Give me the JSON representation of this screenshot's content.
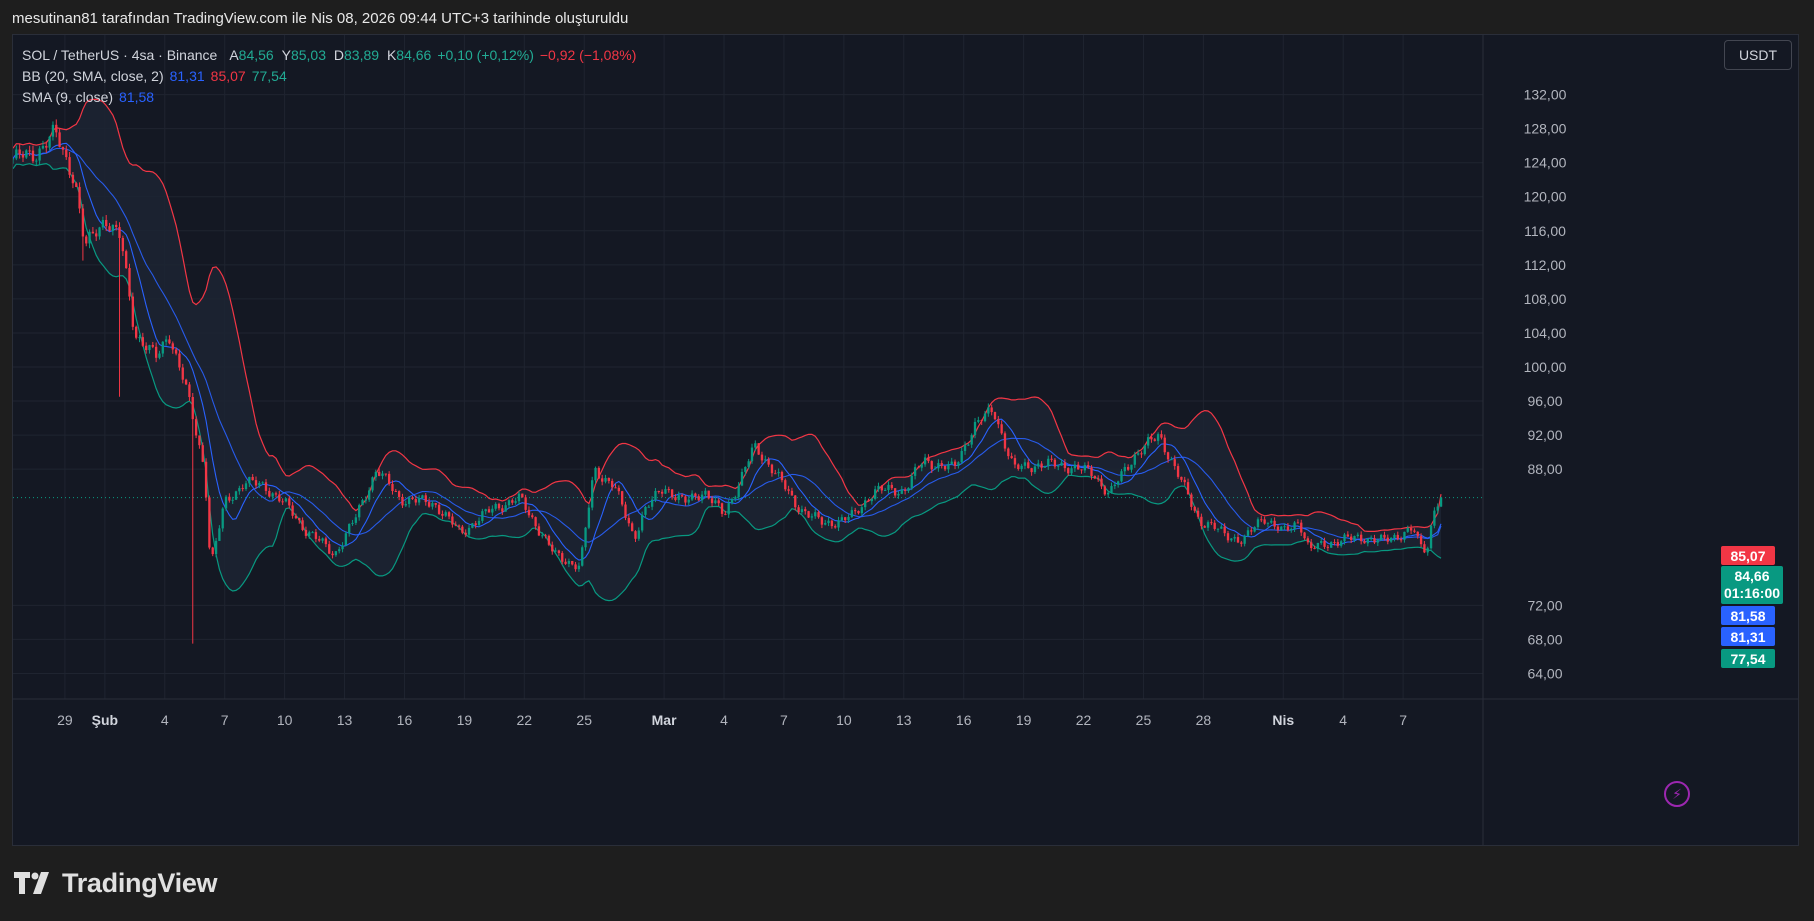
{
  "snapshot_title": "mesutinan81 tarafından TradingView.com ile Nis 08, 2026 09:44 UTC+3 tarihinde oluşturuldu",
  "brand": {
    "name": "TradingView",
    "logo_icon": "tradingview-logo-icon"
  },
  "currency_button": "USDT",
  "legend": {
    "symbol": "SOL / TetherUS · 4sa · Binance",
    "ohlc": [
      {
        "key": "A",
        "value": "84,56"
      },
      {
        "key": "Y",
        "value": "85,03"
      },
      {
        "key": "D",
        "value": "83,89"
      },
      {
        "key": "K",
        "value": "84,66"
      }
    ],
    "change": "+0,10 (+0,12%)",
    "change2": "−0,92 (−1,08%)",
    "bb": {
      "label": "BB (20, SMA, close, 2)",
      "basis": "81,31",
      "upper": "85,07",
      "lower": "77,54"
    },
    "sma": {
      "label": "SMA (9, close)",
      "value": "81,58"
    }
  },
  "price_tags": {
    "upper": {
      "value": "85,07",
      "color": "#f23645"
    },
    "last": {
      "value": "84,66",
      "countdown": "01:16:00",
      "color": "#089981"
    },
    "sma": {
      "value": "81,58",
      "color": "#2962ff"
    },
    "basis": {
      "value": "81,31",
      "color": "#2962ff"
    },
    "lower": {
      "value": "77,54",
      "color": "#089981"
    }
  },
  "chart_data": {
    "type": "candlestick",
    "symbol": "SOL / TetherUS",
    "interval": "4sa",
    "exchange": "Binance",
    "y_axis": {
      "ticks": [
        "132,00",
        "128,00",
        "124,00",
        "120,00",
        "116,00",
        "112,00",
        "108,00",
        "104,00",
        "100,00",
        "96,00",
        "92,00",
        "88,00",
        "72,00",
        "68,00",
        "64,00"
      ],
      "ylim": [
        61,
        139
      ]
    },
    "x_axis": {
      "labels": [
        {
          "text": "29",
          "day": 0,
          "bold": false
        },
        {
          "text": "Şub",
          "day": 2,
          "bold": true
        },
        {
          "text": "4",
          "day": 5,
          "bold": false
        },
        {
          "text": "7",
          "day": 8,
          "bold": false
        },
        {
          "text": "10",
          "day": 11,
          "bold": false
        },
        {
          "text": "13",
          "day": 14,
          "bold": false
        },
        {
          "text": "16",
          "day": 17,
          "bold": false
        },
        {
          "text": "19",
          "day": 20,
          "bold": false
        },
        {
          "text": "22",
          "day": 23,
          "bold": false
        },
        {
          "text": "25",
          "day": 26,
          "bold": false
        },
        {
          "text": "Mar",
          "day": 30,
          "bold": true
        },
        {
          "text": "4",
          "day": 33,
          "bold": false
        },
        {
          "text": "7",
          "day": 36,
          "bold": false
        },
        {
          "text": "10",
          "day": 39,
          "bold": false
        },
        {
          "text": "13",
          "day": 42,
          "bold": false
        },
        {
          "text": "16",
          "day": 45,
          "bold": false
        },
        {
          "text": "19",
          "day": 48,
          "bold": false
        },
        {
          "text": "22",
          "day": 51,
          "bold": false
        },
        {
          "text": "25",
          "day": 54,
          "bold": false
        },
        {
          "text": "28",
          "day": 57,
          "bold": false
        },
        {
          "text": "Nis",
          "day": 61,
          "bold": true
        },
        {
          "text": "4",
          "day": 64,
          "bold": false
        },
        {
          "text": "7",
          "day": 67,
          "bold": false
        }
      ],
      "xlim": [
        -2.6,
        70.6
      ]
    },
    "grid": true,
    "colors": {
      "up": "#089981",
      "down": "#f23645",
      "bb_upper": "#f23645",
      "bb_lower": "#089981",
      "bb_basis": "#2962ff",
      "sma": "#2962ff",
      "bb_fill": "#1c2432"
    },
    "close_anchors": [
      [
        -2.6,
        124.5
      ],
      [
        -1.5,
        125.0
      ],
      [
        -0.5,
        127.5
      ],
      [
        0.5,
        122.0
      ],
      [
        1.0,
        114.0
      ],
      [
        2.0,
        117.5
      ],
      [
        2.8,
        115.0
      ],
      [
        3.5,
        104.0
      ],
      [
        4.6,
        101.0
      ],
      [
        5.2,
        104.0
      ],
      [
        6.0,
        98.0
      ],
      [
        7.0,
        88.0
      ],
      [
        7.3,
        76.5
      ],
      [
        8.0,
        84.0
      ],
      [
        9.0,
        86.5
      ],
      [
        10.0,
        86.0
      ],
      [
        11.0,
        84.0
      ],
      [
        12.0,
        81.0
      ],
      [
        13.5,
        78.0
      ],
      [
        14.5,
        82.0
      ],
      [
        15.6,
        88.0
      ],
      [
        16.8,
        84.5
      ],
      [
        18.5,
        84.0
      ],
      [
        19.8,
        80.5
      ],
      [
        21.5,
        83.5
      ],
      [
        22.8,
        84.5
      ],
      [
        24.5,
        78.0
      ],
      [
        25.8,
        76.5
      ],
      [
        26.5,
        88.0
      ],
      [
        27.5,
        86.0
      ],
      [
        28.5,
        80.0
      ],
      [
        29.0,
        83.0
      ],
      [
        30.0,
        86.0
      ],
      [
        31.0,
        84.0
      ],
      [
        32.0,
        85.5
      ],
      [
        33.0,
        82.5
      ],
      [
        34.5,
        90.5
      ],
      [
        35.5,
        88.0
      ],
      [
        36.5,
        84.0
      ],
      [
        38.0,
        81.5
      ],
      [
        39.5,
        82.5
      ],
      [
        40.5,
        85.5
      ],
      [
        42.0,
        85.5
      ],
      [
        43.0,
        89.0
      ],
      [
        44.5,
        88.0
      ],
      [
        45.5,
        93.0
      ],
      [
        46.5,
        95.0
      ],
      [
        47.5,
        88.0
      ],
      [
        48.5,
        88.5
      ],
      [
        50.0,
        88.5
      ],
      [
        51.5,
        87.5
      ],
      [
        52.3,
        85.0
      ],
      [
        53.5,
        89.5
      ],
      [
        54.8,
        92.0
      ],
      [
        56.0,
        86.0
      ],
      [
        56.8,
        82.0
      ],
      [
        58.0,
        80.5
      ],
      [
        59.0,
        79.5
      ],
      [
        60.0,
        82.5
      ],
      [
        61.0,
        80.5
      ],
      [
        61.8,
        82.0
      ],
      [
        62.3,
        78.5
      ],
      [
        63.5,
        79.5
      ],
      [
        65.0,
        80.0
      ],
      [
        66.0,
        79.5
      ],
      [
        67.5,
        81.0
      ],
      [
        67.8,
        79.0
      ],
      [
        68.2,
        78.5
      ],
      [
        68.6,
        84.0
      ],
      [
        69.0,
        84.66
      ]
    ],
    "wick_spikes": [
      {
        "day": 6.4,
        "low": 67.5
      },
      {
        "day": 0.9,
        "low": 112.5
      },
      {
        "day": 2.7,
        "low": 96.5
      }
    ],
    "bollinger": {
      "period": 20,
      "stddev": 2,
      "last_upper": 85.07,
      "last_basis": 81.31,
      "last_lower": 77.54
    },
    "sma9": {
      "last": 81.58
    },
    "last_close": 84.66
  }
}
